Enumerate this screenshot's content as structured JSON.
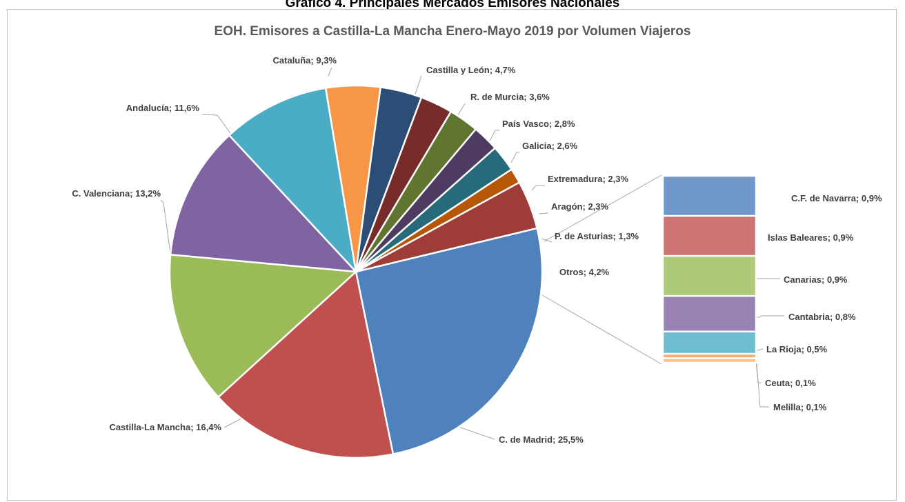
{
  "page_title": "Gráfico 4. Principales Mercados Emisores Nacionales",
  "chart_data": {
    "type": "pie",
    "title": "EOH. Emisores a Castilla-La Mancha Enero-Mayo 2019 por Volumen Viajeros",
    "variant": "bar-of-pie",
    "slices": [
      {
        "label": "C. de Madrid; 25,5%",
        "value": 25.5,
        "color": "#4F81BD"
      },
      {
        "label": "Castilla-La Mancha; 16,4%",
        "value": 16.4,
        "color": "#C0504D"
      },
      {
        "label": "C. Valenciana; 13,2%",
        "value": 13.2,
        "color": "#9BBB59"
      },
      {
        "label": "Andalucía; 11,6%",
        "value": 11.6,
        "color": "#8064A2"
      },
      {
        "label": "Cataluña; 9,3%",
        "value": 9.3,
        "color": "#4BACC6"
      },
      {
        "label": "Castilla y León; 4,7%",
        "value": 4.7,
        "color": "#F79646"
      },
      {
        "label": "R. de Murcia; 3,6%",
        "value": 3.6,
        "color": "#2C4D75"
      },
      {
        "label": "País Vasco;  2,8%",
        "value": 2.8,
        "color": "#772C2A"
      },
      {
        "label": "Galicia; 2,6%",
        "value": 2.6,
        "color": "#5F7530"
      },
      {
        "label": "Extremadura; 2,3%",
        "value": 2.3,
        "color": "#4D3B62"
      },
      {
        "label": "Aragón;  2,3%",
        "value": 2.3,
        "color": "#276A7C"
      },
      {
        "label": "P. de Asturias;  1,3%",
        "value": 1.3,
        "color": "#B65708"
      },
      {
        "label": "Otros;  4,2%",
        "value": 4.2,
        "color": "#9E3C38"
      }
    ],
    "breakdown": [
      {
        "label": "C.F. de Navarra; 0,9%",
        "value": 0.9,
        "color": "#7099CA"
      },
      {
        "label": "Islas Baleares; 0,9%",
        "value": 0.9,
        "color": "#CD7371"
      },
      {
        "label": "Canarias; 0,9%",
        "value": 0.9,
        "color": "#AFC97A"
      },
      {
        "label": "Cantabria; 0,8%",
        "value": 0.8,
        "color": "#9983B5"
      },
      {
        "label": "La Rioja; 0,5%",
        "value": 0.5,
        "color": "#6FBDD1"
      },
      {
        "label": "Ceuta; 0,1%",
        "value": 0.1,
        "color": "#F9AB6B"
      },
      {
        "label": "Melilla; 0,1%",
        "value": 0.1,
        "color": "#FBC08E"
      }
    ]
  }
}
